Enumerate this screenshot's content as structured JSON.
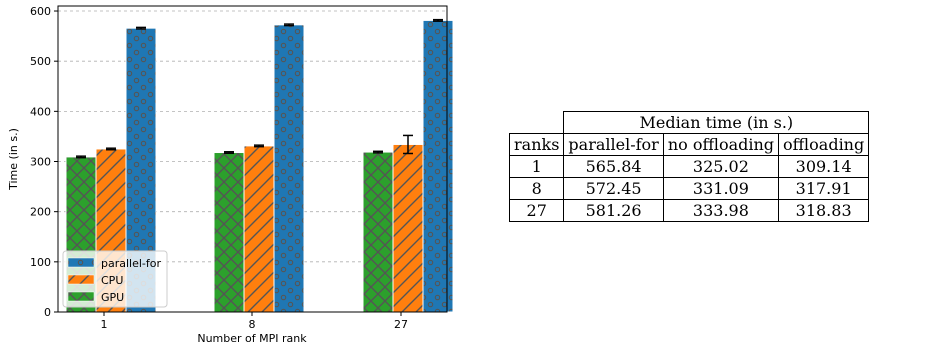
{
  "chart_data": {
    "type": "bar",
    "xlabel": "Number of MPI rank",
    "ylabel": "Time (in s.)",
    "ylim": [
      0,
      610
    ],
    "yticks": [
      0,
      100,
      200,
      300,
      400,
      500,
      600
    ],
    "categories": [
      "1",
      "8",
      "27"
    ],
    "grid": "horizontal dashed",
    "legend_position": "lower-left",
    "series": [
      {
        "name": "GPU",
        "color": "#2ca02c",
        "hatch": "crosshatch",
        "values": [
          309.14,
          317.91,
          318.83
        ],
        "err": [
          1.5,
          1.5,
          1.5
        ]
      },
      {
        "name": "CPU",
        "color": "#ff7f0e",
        "hatch": "diagonal",
        "values": [
          325.02,
          331.09,
          333.98
        ],
        "err": [
          1.5,
          1.5,
          18
        ]
      },
      {
        "name": "parallel-for",
        "color": "#1f77b4",
        "hatch": "dots",
        "values": [
          565.84,
          572.45,
          581.26
        ],
        "err": [
          1.5,
          1.5,
          1.5
        ]
      }
    ],
    "legend_order": [
      "parallel-for",
      "CPU",
      "GPU"
    ]
  },
  "table": {
    "group_header": "Median time (in s.)",
    "columns": [
      "ranks",
      "parallel-for",
      "no offloading",
      "offloading"
    ],
    "rows": [
      [
        "1",
        "565.84",
        "325.02",
        "309.14"
      ],
      [
        "8",
        "572.45",
        "331.09",
        "317.91"
      ],
      [
        "27",
        "581.26",
        "333.98",
        "318.83"
      ]
    ]
  }
}
